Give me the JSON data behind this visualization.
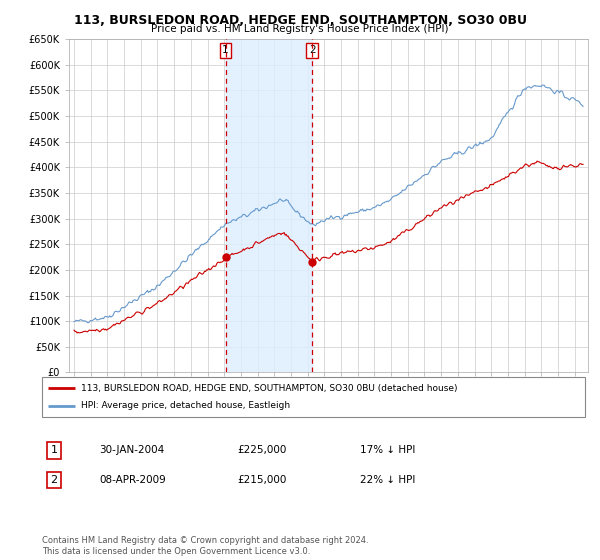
{
  "title": "113, BURSLEDON ROAD, HEDGE END, SOUTHAMPTON, SO30 0BU",
  "subtitle": "Price paid vs. HM Land Registry's House Price Index (HPI)",
  "legend_line1": "113, BURSLEDON ROAD, HEDGE END, SOUTHAMPTON, SO30 0BU (detached house)",
  "legend_line2": "HPI: Average price, detached house, Eastleigh",
  "transaction1_date": "30-JAN-2004",
  "transaction1_price": "£225,000",
  "transaction1_hpi": "17% ↓ HPI",
  "transaction2_date": "08-APR-2009",
  "transaction2_price": "£215,000",
  "transaction2_hpi": "22% ↓ HPI",
  "footnote": "Contains HM Land Registry data © Crown copyright and database right 2024.\nThis data is licensed under the Open Government Licence v3.0.",
  "ylim": [
    0,
    650000
  ],
  "yticks": [
    0,
    50000,
    100000,
    150000,
    200000,
    250000,
    300000,
    350000,
    400000,
    450000,
    500000,
    550000,
    600000,
    650000
  ],
  "red_line_color": "#cc0000",
  "blue_line_color": "#6699cc",
  "shade_color": "#ddeeff",
  "vline_color": "#cc0000",
  "marker1_x": 2004.08,
  "marker1_y": 225000,
  "marker2_x": 2009.27,
  "marker2_y": 215000,
  "vline1_x": 2004.08,
  "vline2_x": 2009.27,
  "xlim_left": 1994.7,
  "xlim_right": 2025.8
}
